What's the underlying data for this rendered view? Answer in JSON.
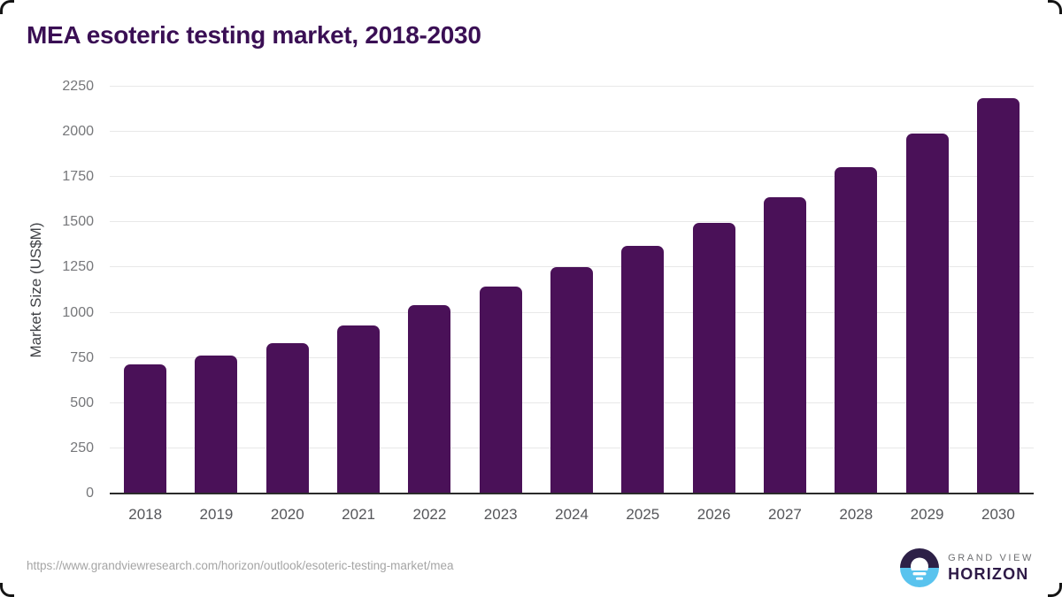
{
  "title": "MEA esoteric testing market, 2018-2030",
  "source_url": "https://www.grandviewresearch.com/horizon/outlook/esoteric-testing-market/mea",
  "branding": {
    "top_label": "GRAND VIEW",
    "bottom_label": "HORIZON"
  },
  "colors": {
    "bar_color": "#4a1158",
    "title_color": "#3a0f54",
    "gridline_color": "#e8e8e8",
    "axis_line_color": "#2b2b2b",
    "ytick_color": "#76777a",
    "xtick_color": "#55565a",
    "axis_title_color": "#3f4145",
    "url_color": "#a5a5a5",
    "brand_gray": "#6e6f72",
    "brand_purple": "#2e1a47",
    "logo_dark": "#2d2047",
    "logo_blue": "#59c3ee"
  },
  "chart_data": {
    "type": "bar",
    "title": "MEA esoteric testing market, 2018-2030",
    "categories": [
      "2018",
      "2019",
      "2020",
      "2021",
      "2022",
      "2023",
      "2024",
      "2025",
      "2026",
      "2027",
      "2028",
      "2029",
      "2030"
    ],
    "values": [
      715,
      765,
      830,
      930,
      1040,
      1145,
      1250,
      1370,
      1495,
      1640,
      1805,
      1990,
      2185
    ],
    "xlabel": "",
    "ylabel": "Market Size (US$M)",
    "ylim": [
      0,
      2250
    ],
    "yticks": [
      0,
      250,
      500,
      750,
      1000,
      1250,
      1500,
      1750,
      2000,
      2250
    ],
    "grid": true,
    "legend_position": "none",
    "bar_color": "#4a1158"
  }
}
